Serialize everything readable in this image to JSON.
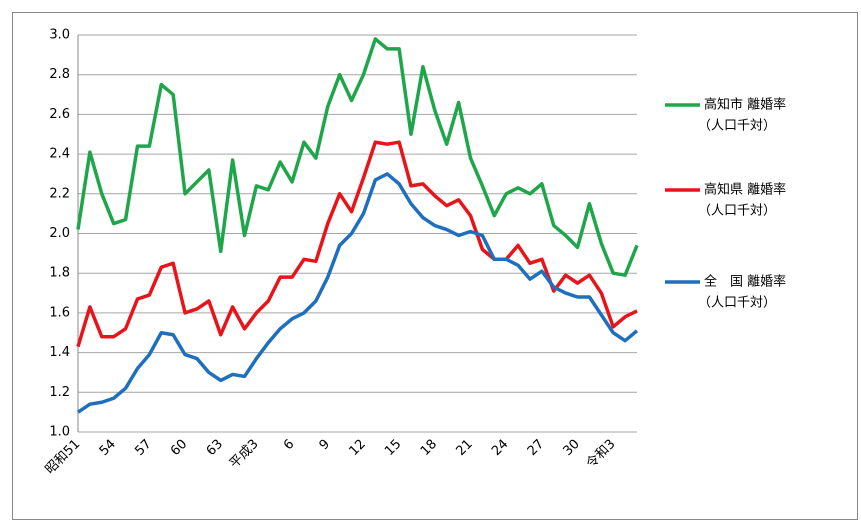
{
  "chart_data": {
    "type": "line",
    "categories": [
      "昭和51",
      null,
      null,
      "54",
      null,
      null,
      "57",
      null,
      null,
      "60",
      null,
      null,
      "63",
      null,
      null,
      "平成3",
      null,
      null,
      "6",
      null,
      null,
      "9",
      null,
      null,
      "12",
      null,
      null,
      "15",
      null,
      null,
      "18",
      null,
      null,
      "21",
      null,
      null,
      "24",
      null,
      null,
      "27",
      null,
      null,
      "30",
      null,
      null,
      "令和3",
      null,
      null
    ],
    "series": [
      {
        "name": "高知市 離婚率",
        "color": "#1fa64b",
        "values": [
          2.02,
          2.41,
          2.2,
          2.05,
          2.07,
          2.44,
          2.44,
          2.75,
          2.7,
          2.2,
          2.26,
          2.32,
          1.91,
          2.37,
          1.99,
          2.24,
          2.22,
          2.36,
          2.26,
          2.46,
          2.38,
          2.64,
          2.8,
          2.67,
          2.8,
          2.98,
          2.93,
          2.93,
          2.5,
          2.84,
          2.62,
          2.45,
          2.66,
          2.38,
          2.24,
          2.09,
          2.2,
          2.23,
          2.2,
          2.25,
          2.04,
          1.99,
          1.93,
          2.15,
          1.95,
          1.8,
          1.79,
          1.94
        ]
      },
      {
        "name": "高知県 離婚率",
        "color": "#e8141a",
        "values": [
          1.43,
          1.63,
          1.48,
          1.48,
          1.52,
          1.67,
          1.69,
          1.83,
          1.85,
          1.6,
          1.62,
          1.66,
          1.49,
          1.63,
          1.52,
          1.6,
          1.66,
          1.78,
          1.78,
          1.87,
          1.86,
          2.05,
          2.2,
          2.11,
          2.28,
          2.46,
          2.45,
          2.46,
          2.24,
          2.25,
          2.19,
          2.14,
          2.17,
          2.09,
          1.92,
          1.87,
          1.87,
          1.94,
          1.85,
          1.87,
          1.71,
          1.79,
          1.75,
          1.79,
          1.7,
          1.53,
          1.58,
          1.61
        ]
      },
      {
        "name": "全　国 離婚率",
        "color": "#1e6fbe",
        "values": [
          1.1,
          1.14,
          1.15,
          1.17,
          1.22,
          1.32,
          1.39,
          1.5,
          1.49,
          1.39,
          1.37,
          1.3,
          1.26,
          1.29,
          1.28,
          1.37,
          1.45,
          1.52,
          1.57,
          1.6,
          1.66,
          1.78,
          1.94,
          2.0,
          2.1,
          2.27,
          2.3,
          2.25,
          2.15,
          2.08,
          2.04,
          2.02,
          1.99,
          2.01,
          1.99,
          1.87,
          1.87,
          1.84,
          1.77,
          1.81,
          1.73,
          1.7,
          1.68,
          1.68,
          1.59,
          1.5,
          1.46,
          1.51
        ]
      }
    ],
    "legend_note": "（人口千対）",
    "ylim": [
      1.0,
      3.0
    ],
    "yticks": [
      {
        "value": 1,
        "label": "1.0"
      },
      {
        "value": 1.2,
        "label": "1.2"
      },
      {
        "value": 1.4,
        "label": "1.4"
      },
      {
        "value": 1.6,
        "label": "1.6"
      },
      {
        "value": 1.8,
        "label": "1.8"
      },
      {
        "value": 2,
        "label": "2.0"
      },
      {
        "value": 2.2,
        "label": "2.2"
      },
      {
        "value": 2.4,
        "label": "2.4"
      },
      {
        "value": 2.6,
        "label": "2.6"
      },
      {
        "value": 2.8,
        "label": "2.8"
      },
      {
        "value": 3,
        "label": "3.0"
      }
    ],
    "grid": true,
    "legend": "right"
  }
}
